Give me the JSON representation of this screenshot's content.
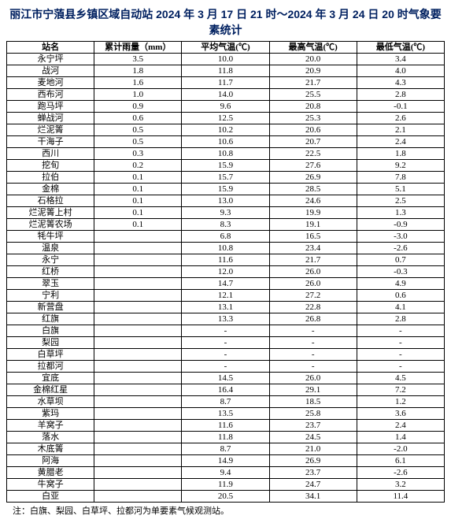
{
  "title": "丽江市宁蒗县乡镇区域自动站 2024 年 3 月 17 日 21 时～2024 年 3 月 24 日 20 时气象要素统计",
  "columns": [
    "站名",
    "累计雨量（mm）",
    "平均气温(℃)",
    "最高气温(℃)",
    "最低气温(℃)"
  ],
  "rows": [
    [
      "永宁坪",
      "3.5",
      "10.0",
      "20.0",
      "3.4"
    ],
    [
      "战河",
      "1.8",
      "11.8",
      "20.9",
      "4.0"
    ],
    [
      "麦地河",
      "1.6",
      "11.7",
      "21.7",
      "4.3"
    ],
    [
      "西布河",
      "1.0",
      "14.0",
      "25.5",
      "2.8"
    ],
    [
      "跑马坪",
      "0.9",
      "9.6",
      "20.8",
      "-0.1"
    ],
    [
      "蝉战河",
      "0.6",
      "12.5",
      "25.3",
      "2.6"
    ],
    [
      "烂泥箐",
      "0.5",
      "10.2",
      "20.6",
      "2.1"
    ],
    [
      "干海子",
      "0.5",
      "10.6",
      "20.7",
      "2.4"
    ],
    [
      "西川",
      "0.3",
      "10.8",
      "22.5",
      "1.8"
    ],
    [
      "挖旬",
      "0.2",
      "15.9",
      "27.6",
      "9.2"
    ],
    [
      "拉伯",
      "0.1",
      "15.7",
      "26.9",
      "7.8"
    ],
    [
      "金棉",
      "0.1",
      "15.9",
      "28.5",
      "5.1"
    ],
    [
      "石格拉",
      "0.1",
      "13.0",
      "24.6",
      "2.5"
    ],
    [
      "烂泥箐上村",
      "0.1",
      "9.3",
      "19.9",
      "1.3"
    ],
    [
      "烂泥箐农场",
      "0.1",
      "8.3",
      "19.1",
      "-0.9"
    ],
    [
      "牦牛坪",
      "",
      "6.8",
      "16.5",
      "-3.0"
    ],
    [
      "温泉",
      "",
      "10.8",
      "23.4",
      "-2.6"
    ],
    [
      "永宁",
      "",
      "11.6",
      "21.7",
      "0.7"
    ],
    [
      "红桥",
      "",
      "12.0",
      "26.0",
      "-0.3"
    ],
    [
      "翠玉",
      "",
      "14.7",
      "26.0",
      "4.9"
    ],
    [
      "宁利",
      "",
      "12.1",
      "27.2",
      "0.6"
    ],
    [
      "新营盘",
      "",
      "13.1",
      "22.8",
      "4.1"
    ],
    [
      "红旗",
      "",
      "13.3",
      "26.8",
      "2.8"
    ],
    [
      "白旗",
      "",
      "-",
      "-",
      "-"
    ],
    [
      "梨园",
      "",
      "-",
      "-",
      "-"
    ],
    [
      "白草坪",
      "",
      "-",
      "-",
      "-"
    ],
    [
      "拉都河",
      "",
      "-",
      "-",
      "-"
    ],
    [
      "宜底",
      "",
      "14.5",
      "26.0",
      "4.5"
    ],
    [
      "金棉红星",
      "",
      "16.4",
      "29.1",
      "7.2"
    ],
    [
      "水草坝",
      "",
      "8.7",
      "18.5",
      "1.2"
    ],
    [
      "紫玛",
      "",
      "13.5",
      "25.8",
      "3.6"
    ],
    [
      "羊窝子",
      "",
      "11.6",
      "23.7",
      "2.4"
    ],
    [
      "落水",
      "",
      "11.8",
      "24.5",
      "1.4"
    ],
    [
      "木底箐",
      "",
      "8.7",
      "21.0",
      "-2.0"
    ],
    [
      "阿海",
      "",
      "14.9",
      "26.9",
      "6.1"
    ],
    [
      "黄腊老",
      "",
      "9.4",
      "23.7",
      "-2.6"
    ],
    [
      "牛窝子",
      "",
      "11.9",
      "24.7",
      "3.2"
    ],
    [
      "白亚",
      "",
      "20.5",
      "34.1",
      "11.4"
    ]
  ],
  "note": "注：白旗、梨园、白草坪、拉都河为单要素气候观测站。"
}
